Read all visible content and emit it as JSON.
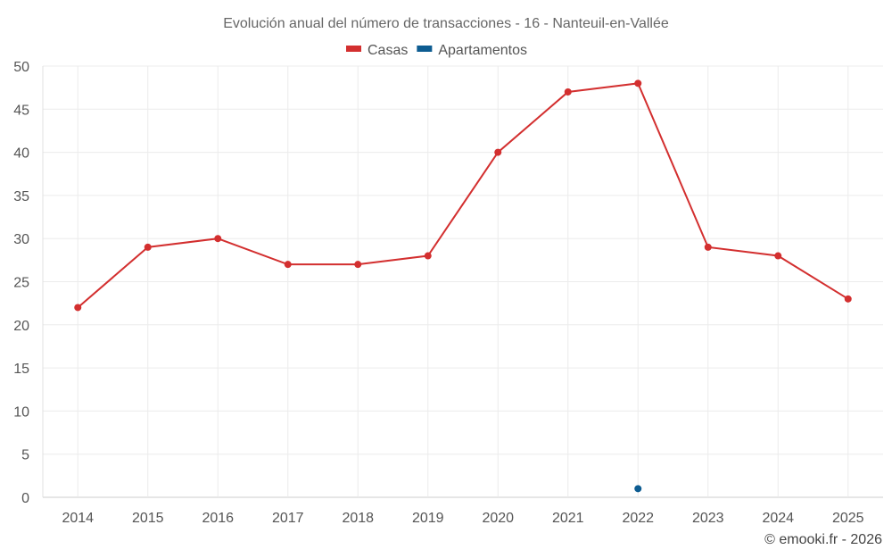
{
  "chart_data": {
    "type": "line",
    "title": "Evolución anual del número de transacciones - 16 - Nanteuil-en-Vallée",
    "xlabel": "",
    "ylabel": "",
    "categories": [
      "2014",
      "2015",
      "2016",
      "2017",
      "2018",
      "2019",
      "2020",
      "2021",
      "2022",
      "2023",
      "2024",
      "2025"
    ],
    "ylim": [
      0,
      50
    ],
    "yticks": [
      0,
      5,
      10,
      15,
      20,
      25,
      30,
      35,
      40,
      45,
      50
    ],
    "grid": true,
    "legend_position": "top-center",
    "series": [
      {
        "name": "Casas",
        "color": "#d32f2f",
        "values": [
          22,
          29,
          30,
          27,
          27,
          28,
          40,
          47,
          48,
          29,
          28,
          23
        ]
      },
      {
        "name": "Apartamentos",
        "color": "#0d5c91",
        "values": [
          null,
          null,
          null,
          null,
          null,
          null,
          null,
          null,
          1,
          null,
          null,
          null
        ]
      }
    ]
  },
  "credit": "© emooki.fr - 2026"
}
